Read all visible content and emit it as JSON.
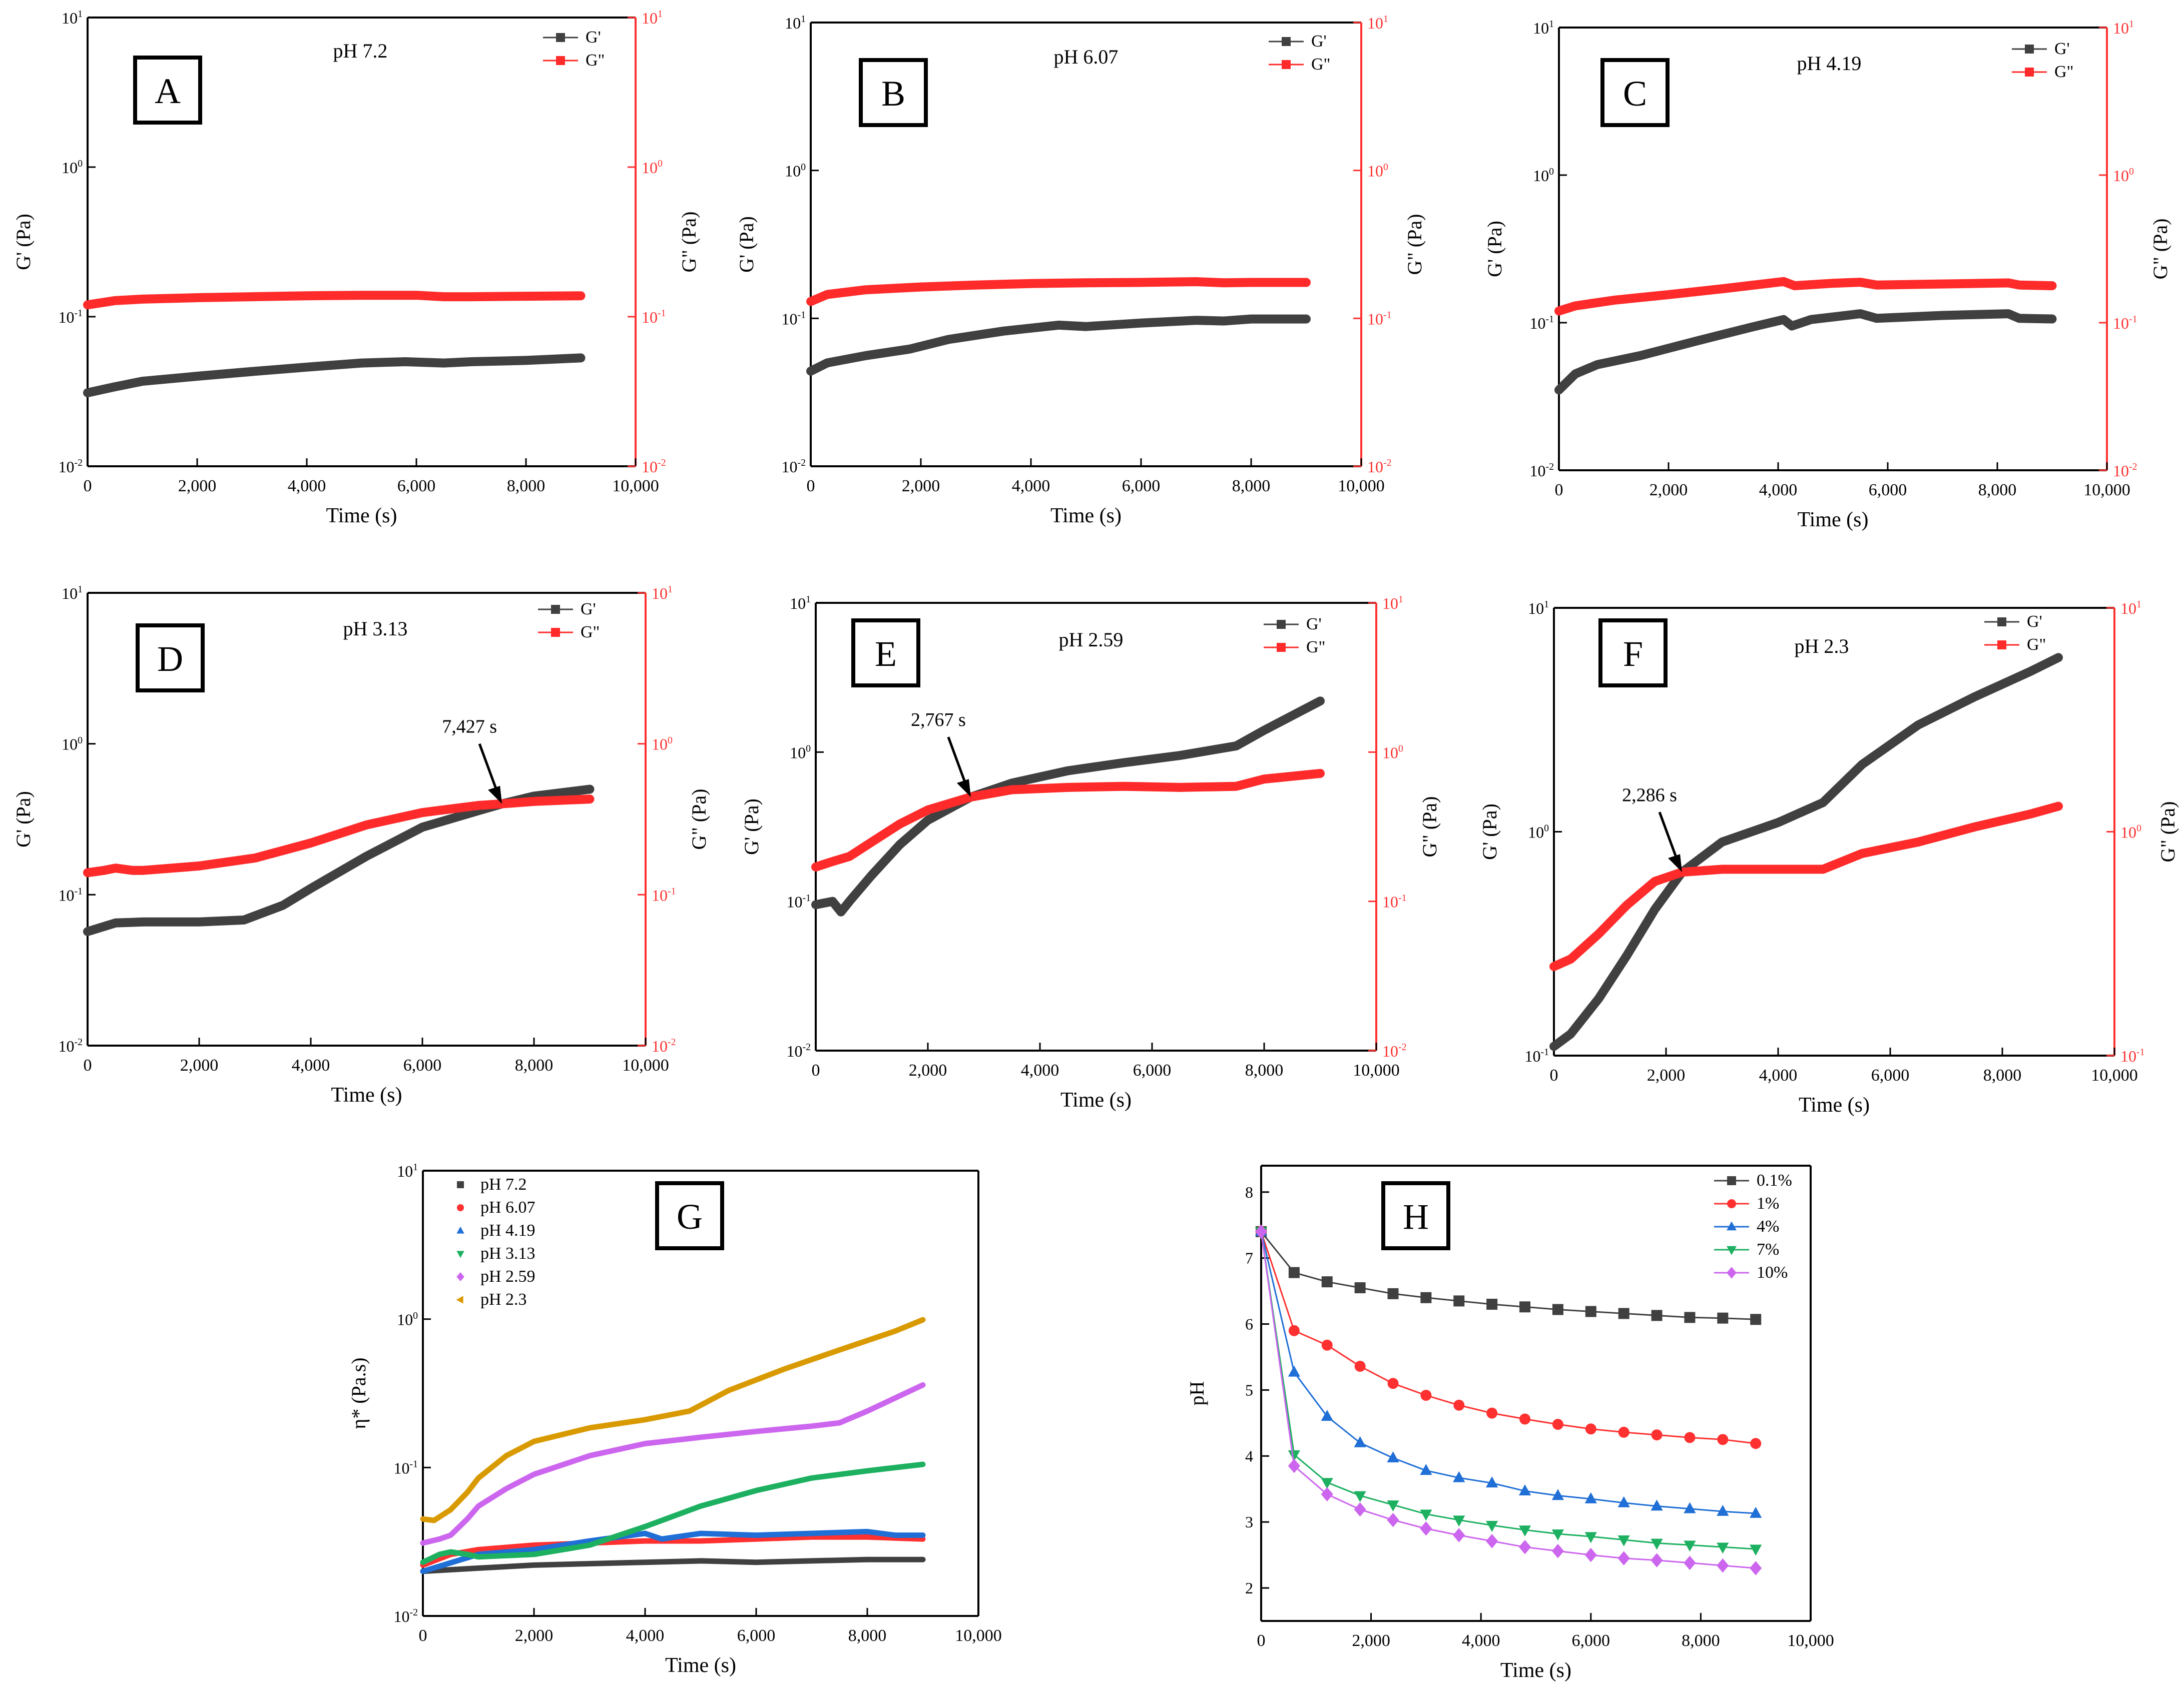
{
  "colors": {
    "gprime": "#404040",
    "gdouble": "#ff2a2a",
    "right_axis": "#ff3030",
    "axis": "#000000"
  },
  "chart_data": [
    {
      "id": "A",
      "panel_label": "A",
      "type": "line",
      "title": "pH 7.2",
      "xlabel": "Time (s)",
      "ylabel_left": "G' (Pa)",
      "ylabel_right": "G\" (Pa)",
      "xlim": [
        0,
        10000
      ],
      "ylim": [
        0.01,
        10
      ],
      "yscale": "log",
      "grid": false,
      "legend": "top-right",
      "series": [
        {
          "name": "G'",
          "axis": "left",
          "x": [
            0,
            500,
            1000,
            2000,
            3000,
            4000,
            5000,
            5800,
            6500,
            7000,
            8000,
            9000
          ],
          "y": [
            0.031,
            0.034,
            0.037,
            0.04,
            0.043,
            0.046,
            0.049,
            0.05,
            0.049,
            0.05,
            0.051,
            0.053
          ]
        },
        {
          "name": "G\"",
          "axis": "right",
          "x": [
            0,
            500,
            1000,
            2000,
            3000,
            4000,
            5000,
            6000,
            6500,
            7000,
            8000,
            9000
          ],
          "y": [
            0.12,
            0.128,
            0.131,
            0.134,
            0.136,
            0.138,
            0.139,
            0.139,
            0.136,
            0.136,
            0.137,
            0.138
          ]
        }
      ],
      "yticks": [
        "10-2",
        "10-1",
        "100",
        "101"
      ],
      "xticks": [
        "0",
        "2,000",
        "4,000",
        "6,000",
        "8,000",
        "10,000"
      ]
    },
    {
      "id": "B",
      "panel_label": "B",
      "type": "line",
      "title": "pH 6.07",
      "xlabel": "Time (s)",
      "ylabel_left": "G' (Pa)",
      "ylabel_right": "G\" (Pa)",
      "xlim": [
        0,
        10000
      ],
      "ylim": [
        0.01,
        10
      ],
      "yscale": "log",
      "grid": false,
      "legend": "top-right",
      "series": [
        {
          "name": "G'",
          "axis": "left",
          "x": [
            0,
            300,
            1000,
            1800,
            2500,
            3500,
            4500,
            5000,
            6000,
            7000,
            7500,
            8000,
            9000
          ],
          "y": [
            0.044,
            0.05,
            0.056,
            0.062,
            0.072,
            0.082,
            0.09,
            0.088,
            0.093,
            0.097,
            0.096,
            0.099,
            0.099
          ]
        },
        {
          "name": "G\"",
          "axis": "right",
          "x": [
            0,
            300,
            1000,
            2000,
            3000,
            4000,
            5000,
            6000,
            7000,
            7500,
            8000,
            9000
          ],
          "y": [
            0.13,
            0.145,
            0.156,
            0.163,
            0.168,
            0.172,
            0.174,
            0.175,
            0.177,
            0.174,
            0.175,
            0.175
          ]
        }
      ],
      "yticks": [
        "10-2",
        "10-1",
        "100",
        "101"
      ],
      "xticks": [
        "0",
        "2,000",
        "4,000",
        "6,000",
        "8,000",
        "10,000"
      ]
    },
    {
      "id": "C",
      "panel_label": "C",
      "type": "line",
      "title": "pH 4.19",
      "xlabel": "Time (s)",
      "ylabel_left": "G' (Pa)",
      "ylabel_right": "G\" (Pa)",
      "xlim": [
        0,
        10000
      ],
      "ylim": [
        0.01,
        10
      ],
      "yscale": "log",
      "grid": false,
      "legend": "top-right",
      "series": [
        {
          "name": "G'",
          "axis": "left",
          "x": [
            0,
            300,
            700,
            1500,
            2500,
            3500,
            4100,
            4250,
            4600,
            5500,
            5800,
            7000,
            8200,
            8400,
            9000
          ],
          "y": [
            0.035,
            0.045,
            0.052,
            0.06,
            0.075,
            0.093,
            0.105,
            0.095,
            0.105,
            0.115,
            0.107,
            0.112,
            0.115,
            0.107,
            0.106
          ]
        },
        {
          "name": "G\"",
          "axis": "right",
          "x": [
            0,
            300,
            1000,
            2000,
            3000,
            4100,
            4300,
            5000,
            5500,
            5800,
            7000,
            8200,
            8400,
            9000
          ],
          "y": [
            0.12,
            0.13,
            0.142,
            0.155,
            0.17,
            0.19,
            0.178,
            0.185,
            0.188,
            0.18,
            0.183,
            0.186,
            0.18,
            0.178
          ]
        }
      ],
      "yticks": [
        "10-2",
        "10-1",
        "100",
        "101"
      ],
      "xticks": [
        "0",
        "2,000",
        "4,000",
        "6,000",
        "8,000",
        "10,000"
      ]
    },
    {
      "id": "D",
      "panel_label": "D",
      "type": "line",
      "title": "pH 3.13",
      "xlabel": "Time (s)",
      "ylabel_left": "G' (Pa)",
      "ylabel_right": "G\" (Pa)",
      "xlim": [
        0,
        10000
      ],
      "ylim": [
        0.01,
        10
      ],
      "yscale": "log",
      "grid": false,
      "legend": "top-right",
      "annotation": {
        "text": "7,427 s",
        "x": 7427,
        "y": 0.4
      },
      "series": [
        {
          "name": "G'",
          "axis": "left",
          "x": [
            0,
            500,
            1000,
            2000,
            2800,
            3500,
            4000,
            5000,
            6000,
            7000,
            7427,
            8000,
            9000
          ],
          "y": [
            0.057,
            0.065,
            0.066,
            0.066,
            0.068,
            0.085,
            0.11,
            0.18,
            0.28,
            0.36,
            0.4,
            0.45,
            0.5
          ]
        },
        {
          "name": "G\"",
          "axis": "right",
          "x": [
            0,
            300,
            500,
            800,
            1000,
            2000,
            3000,
            4000,
            5000,
            6000,
            7000,
            7427,
            8000,
            9000
          ],
          "y": [
            0.14,
            0.145,
            0.15,
            0.145,
            0.145,
            0.155,
            0.175,
            0.22,
            0.29,
            0.35,
            0.39,
            0.4,
            0.415,
            0.43
          ]
        }
      ],
      "yticks": [
        "10-2",
        "10-1",
        "100",
        "101"
      ],
      "xticks": [
        "0",
        "2,000",
        "4,000",
        "6,000",
        "8,000",
        "10,000"
      ]
    },
    {
      "id": "E",
      "panel_label": "E",
      "type": "line",
      "title": "pH 2.59",
      "xlabel": "Time (s)",
      "ylabel_left": "G' (Pa)",
      "ylabel_right": "G\" (Pa)",
      "xlim": [
        0,
        10000
      ],
      "ylim": [
        0.01,
        10
      ],
      "yscale": "log",
      "grid": false,
      "legend": "top-right",
      "annotation": {
        "text": "2,767 s",
        "x": 2767,
        "y": 0.5
      },
      "series": [
        {
          "name": "G'",
          "axis": "left",
          "x": [
            0,
            300,
            450,
            600,
            1000,
            1500,
            2000,
            2767,
            3500,
            4500,
            5500,
            6500,
            7500,
            8000,
            9000
          ],
          "y": [
            0.095,
            0.1,
            0.085,
            0.1,
            0.15,
            0.24,
            0.35,
            0.5,
            0.62,
            0.75,
            0.85,
            0.95,
            1.1,
            1.4,
            2.2
          ]
        },
        {
          "name": "G\"",
          "axis": "right",
          "x": [
            0,
            300,
            600,
            1000,
            1500,
            2000,
            2767,
            3500,
            4500,
            5500,
            6500,
            7500,
            8000,
            9000
          ],
          "y": [
            0.17,
            0.185,
            0.2,
            0.25,
            0.33,
            0.41,
            0.5,
            0.56,
            0.58,
            0.59,
            0.58,
            0.59,
            0.66,
            0.72
          ]
        }
      ],
      "yticks": [
        "10-2",
        "10-1",
        "100",
        "101"
      ],
      "xticks": [
        "0",
        "2,000",
        "4,000",
        "6,000",
        "8,000",
        "10,000"
      ]
    },
    {
      "id": "F",
      "panel_label": "F",
      "type": "line",
      "title": "pH 2.3",
      "xlabel": "Time (s)",
      "ylabel_left": "G' (Pa)",
      "ylabel_right": "G\" (Pa)",
      "xlim": [
        0,
        10000
      ],
      "ylim": [
        0.1,
        10
      ],
      "yscale": "log",
      "grid": false,
      "legend": "top-right",
      "annotation": {
        "text": "2,286 s",
        "x": 2286,
        "y": 0.66
      },
      "series": [
        {
          "name": "G'",
          "axis": "left",
          "x": [
            0,
            300,
            800,
            1300,
            1800,
            2286,
            3000,
            4000,
            4800,
            5500,
            6500,
            7500,
            8500,
            9000
          ],
          "y": [
            0.11,
            0.125,
            0.18,
            0.28,
            0.45,
            0.66,
            0.9,
            1.1,
            1.35,
            2.0,
            3.0,
            4.0,
            5.2,
            6.0
          ]
        },
        {
          "name": "G\"",
          "axis": "right",
          "x": [
            0,
            300,
            800,
            1300,
            1800,
            2286,
            3000,
            4000,
            4800,
            5500,
            6500,
            7500,
            8500,
            9000
          ],
          "y": [
            0.25,
            0.27,
            0.35,
            0.47,
            0.6,
            0.66,
            0.68,
            0.68,
            0.68,
            0.8,
            0.9,
            1.05,
            1.2,
            1.3
          ]
        }
      ],
      "yticks": [
        "10-1",
        "100",
        "101"
      ],
      "xticks": [
        "0",
        "2,000",
        "4,000",
        "6,000",
        "8,000",
        "10,000"
      ]
    },
    {
      "id": "G",
      "panel_label": "G",
      "type": "line",
      "title": "",
      "xlabel": "Time (s)",
      "ylabel": "η* (Pa.s)",
      "xlim": [
        0,
        10000
      ],
      "ylim": [
        0.01,
        10
      ],
      "yscale": "log",
      "grid": false,
      "legend": "top-left",
      "series": [
        {
          "name": "pH 7.2",
          "color": "#404040",
          "marker": "square",
          "x": [
            0,
            1000,
            2000,
            3000,
            4000,
            5000,
            6000,
            7000,
            8000,
            9000
          ],
          "y": [
            0.02,
            0.021,
            0.022,
            0.0225,
            0.023,
            0.0235,
            0.023,
            0.0235,
            0.024,
            0.024
          ]
        },
        {
          "name": "pH 6.07",
          "color": "#ff3030",
          "marker": "circle",
          "x": [
            0,
            500,
            1000,
            2000,
            3000,
            4000,
            5000,
            6000,
            7000,
            8000,
            9000
          ],
          "y": [
            0.022,
            0.026,
            0.028,
            0.03,
            0.031,
            0.032,
            0.032,
            0.033,
            0.034,
            0.034,
            0.033
          ]
        },
        {
          "name": "pH 4.19",
          "color": "#1f6fd6",
          "marker": "triangle-up",
          "x": [
            0,
            1000,
            2000,
            3000,
            4000,
            4300,
            5000,
            6000,
            7000,
            8000,
            8500,
            9000
          ],
          "y": [
            0.02,
            0.026,
            0.028,
            0.032,
            0.036,
            0.033,
            0.036,
            0.035,
            0.036,
            0.037,
            0.035,
            0.035
          ]
        },
        {
          "name": "pH 3.13",
          "color": "#1db060",
          "marker": "triangle-down",
          "x": [
            0,
            300,
            500,
            800,
            1000,
            2000,
            3000,
            4000,
            5000,
            6000,
            7000,
            8000,
            9000
          ],
          "y": [
            0.023,
            0.026,
            0.027,
            0.026,
            0.025,
            0.026,
            0.03,
            0.04,
            0.055,
            0.07,
            0.085,
            0.095,
            0.105
          ]
        },
        {
          "name": "pH 2.59",
          "color": "#cc66ee",
          "marker": "diamond",
          "x": [
            0,
            300,
            500,
            800,
            1000,
            1500,
            2000,
            3000,
            4000,
            5000,
            6000,
            7000,
            7500,
            8000,
            9000
          ],
          "y": [
            0.031,
            0.033,
            0.035,
            0.045,
            0.055,
            0.072,
            0.09,
            0.12,
            0.145,
            0.16,
            0.175,
            0.19,
            0.2,
            0.24,
            0.36
          ]
        },
        {
          "name": "pH 2.3",
          "color": "#d89a00",
          "marker": "triangle-left",
          "x": [
            0,
            200,
            500,
            800,
            1000,
            1500,
            2000,
            3000,
            4000,
            4800,
            5500,
            6500,
            7500,
            8500,
            9000
          ],
          "y": [
            0.045,
            0.044,
            0.052,
            0.068,
            0.085,
            0.12,
            0.15,
            0.185,
            0.21,
            0.24,
            0.33,
            0.46,
            0.62,
            0.83,
            0.99
          ]
        }
      ],
      "yticks": [
        "10-2",
        "10-1",
        "100",
        "101"
      ],
      "xticks": [
        "0",
        "2,000",
        "4,000",
        "6,000",
        "8,000",
        "10,000"
      ]
    },
    {
      "id": "H",
      "panel_label": "H",
      "type": "line",
      "title": "",
      "xlabel": "Time (s)",
      "ylabel": "pH",
      "xlim": [
        0,
        10000
      ],
      "ylim": [
        1.5,
        8.4
      ],
      "yscale": "linear",
      "grid": false,
      "legend": "top-right",
      "x": [
        0,
        600,
        1200,
        1800,
        2400,
        3000,
        3600,
        4200,
        4800,
        5400,
        6000,
        6600,
        7200,
        7800,
        8400,
        9000
      ],
      "series": [
        {
          "name": "0.1%",
          "color": "#404040",
          "marker": "square",
          "y": [
            7.4,
            6.78,
            6.64,
            6.55,
            6.46,
            6.4,
            6.35,
            6.3,
            6.26,
            6.22,
            6.19,
            6.16,
            6.13,
            6.1,
            6.09,
            6.07
          ]
        },
        {
          "name": "1%",
          "color": "#ff3030",
          "marker": "circle",
          "y": [
            7.4,
            5.9,
            5.68,
            5.36,
            5.1,
            4.92,
            4.77,
            4.65,
            4.56,
            4.48,
            4.41,
            4.36,
            4.32,
            4.28,
            4.25,
            4.19
          ]
        },
        {
          "name": "4%",
          "color": "#1f6fd6",
          "marker": "triangle-up",
          "y": [
            7.4,
            5.27,
            4.6,
            4.2,
            3.97,
            3.78,
            3.67,
            3.59,
            3.47,
            3.4,
            3.35,
            3.29,
            3.24,
            3.2,
            3.16,
            3.13
          ]
        },
        {
          "name": "7%",
          "color": "#1db060",
          "marker": "triangle-down",
          "y": [
            7.4,
            4.02,
            3.6,
            3.4,
            3.26,
            3.12,
            3.03,
            2.95,
            2.88,
            2.82,
            2.78,
            2.73,
            2.68,
            2.65,
            2.62,
            2.59
          ]
        },
        {
          "name": "10%",
          "color": "#cc66ee",
          "marker": "diamond",
          "y": [
            7.4,
            3.85,
            3.42,
            3.19,
            3.03,
            2.9,
            2.8,
            2.71,
            2.62,
            2.56,
            2.5,
            2.45,
            2.42,
            2.38,
            2.34,
            2.3
          ]
        }
      ],
      "yticks": [
        "2",
        "3",
        "4",
        "5",
        "6",
        "7",
        "8"
      ],
      "xticks": [
        "0",
        "2,000",
        "4,000",
        "6,000",
        "8,000",
        "10,000"
      ]
    }
  ]
}
